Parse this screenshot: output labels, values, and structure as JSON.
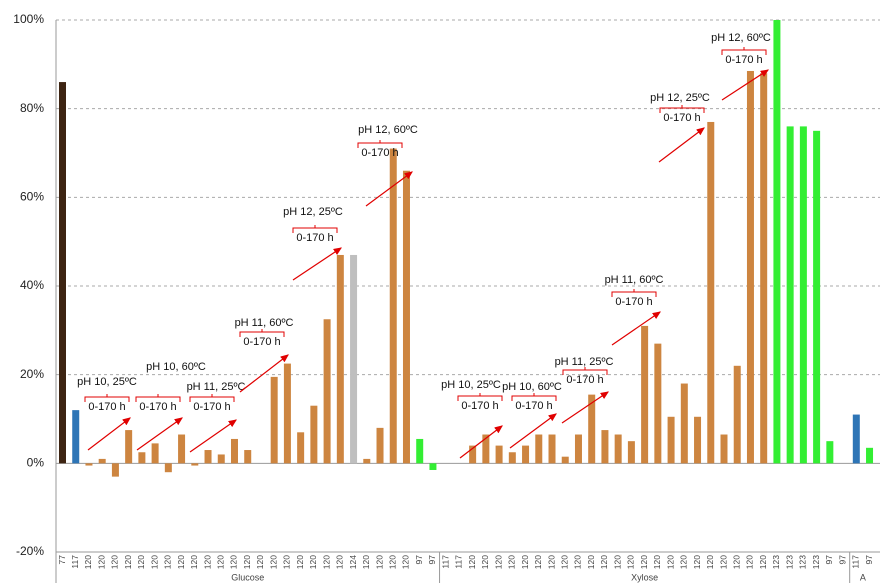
{
  "chart_data": {
    "type": "bar",
    "ylim": [
      -20,
      100
    ],
    "yticks": [
      {
        "value": -20,
        "label": "-20%"
      },
      {
        "value": 0,
        "label": "0%"
      },
      {
        "value": 20,
        "label": "20%"
      },
      {
        "value": 40,
        "label": "40%"
      },
      {
        "value": 60,
        "label": "60%"
      },
      {
        "value": 80,
        "label": "80%"
      },
      {
        "value": 100,
        "label": "100%"
      }
    ],
    "grid": true,
    "groups": [
      {
        "name": "Glucose",
        "categories": [
          "77",
          "117",
          "120",
          "120",
          "120",
          "120",
          "120",
          "120",
          "120",
          "120",
          "120",
          "120",
          "120",
          "120",
          "120",
          "120",
          "120",
          "120",
          "120",
          "120",
          "120",
          "120",
          "124",
          "120",
          "120",
          "120",
          "120",
          "97",
          "97"
        ],
        "values": [
          86,
          12,
          -0.5,
          1,
          -3,
          7.5,
          2.5,
          4.5,
          -2,
          6.5,
          -0.5,
          3,
          2,
          5.5,
          3,
          0,
          19.5,
          22.5,
          7,
          13,
          32.5,
          47,
          47,
          1,
          8,
          71,
          66,
          5.5,
          -1.5
        ],
        "colors": [
          "#3d2412",
          "#2e75b6",
          "#cd8540",
          "#cd8540",
          "#cd8540",
          "#cd8540",
          "#cd8540",
          "#cd8540",
          "#cd8540",
          "#cd8540",
          "#cd8540",
          "#cd8540",
          "#cd8540",
          "#cd8540",
          "#cd8540",
          "#cd8540",
          "#cd8540",
          "#cd8540",
          "#cd8540",
          "#cd8540",
          "#cd8540",
          "#cd8540",
          "#bfbfbf",
          "#cd8540",
          "#cd8540",
          "#cd8540",
          "#cd8540",
          "#33ee33",
          "#33ee33"
        ]
      },
      {
        "name": "Xylose",
        "categories": [
          "117",
          "117",
          "120",
          "120",
          "120",
          "120",
          "120",
          "120",
          "120",
          "120",
          "120",
          "120",
          "120",
          "120",
          "120",
          "120",
          "120",
          "120",
          "120",
          "120",
          "120",
          "120",
          "120",
          "120",
          "120",
          "123",
          "123",
          "123",
          "123",
          "97",
          "97"
        ],
        "values": [
          0,
          0,
          4,
          6.5,
          4,
          2.5,
          4,
          6.5,
          6.5,
          1.5,
          6.5,
          15.5,
          7.5,
          6.5,
          5,
          31,
          27,
          10.5,
          18,
          10.5,
          77,
          6.5,
          22,
          88.5,
          88,
          100,
          76,
          76,
          75,
          5,
          0
        ],
        "colors": [
          "#2e75b6",
          "#2e75b6",
          "#cd8540",
          "#cd8540",
          "#cd8540",
          "#cd8540",
          "#cd8540",
          "#cd8540",
          "#cd8540",
          "#cd8540",
          "#cd8540",
          "#cd8540",
          "#cd8540",
          "#cd8540",
          "#cd8540",
          "#cd8540",
          "#cd8540",
          "#cd8540",
          "#cd8540",
          "#cd8540",
          "#cd8540",
          "#cd8540",
          "#cd8540",
          "#cd8540",
          "#cd8540",
          "#33ee33",
          "#33ee33",
          "#33ee33",
          "#33ee33",
          "#33ee33",
          "#33ee33"
        ]
      },
      {
        "name": "A",
        "categories": [
          "117",
          "97"
        ],
        "values": [
          11,
          3.5
        ],
        "colors": [
          "#2e75b6",
          "#33ee33"
        ]
      }
    ],
    "annotations": [
      {
        "text": "pH 10, 25ºC",
        "sub": "0-170 h"
      },
      {
        "text": "pH 10, 60ºC",
        "sub": "0-170 h"
      },
      {
        "text": "pH 11, 25ºC",
        "sub": "0-170 h"
      },
      {
        "text": "pH 11, 60ºC",
        "sub": "0-170 h"
      },
      {
        "text": "pH 12, 25ºC",
        "sub": "0-170 h"
      },
      {
        "text": "pH 12, 60ºC",
        "sub": "0-170 h"
      },
      {
        "text": "pH 10, 25ºC",
        "sub": "0-170 h"
      },
      {
        "text": "pH 10, 60ºC",
        "sub": "0-170 h"
      },
      {
        "text": "pH 11, 25ºC",
        "sub": "0-170 h"
      },
      {
        "text": "pH 11, 60ºC",
        "sub": "0-170 h"
      },
      {
        "text": "pH 12, 25ºC",
        "sub": "0-170 h"
      },
      {
        "text": "pH 12, 60ºC",
        "sub": "0-170 h"
      }
    ]
  }
}
